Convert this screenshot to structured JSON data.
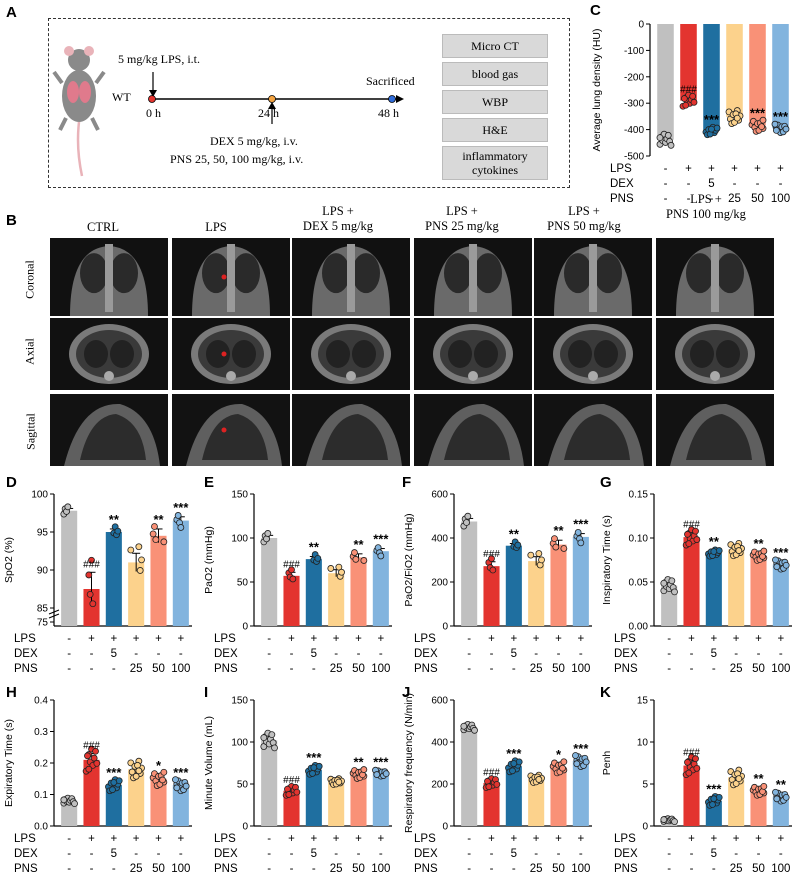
{
  "panel_letters": [
    "A",
    "B",
    "C",
    "D",
    "E",
    "F",
    "G",
    "H",
    "I",
    "J",
    "K"
  ],
  "panel_a": {
    "lps_dose": "5 mg/kg LPS, i.t.",
    "wt": "WT",
    "t0": "0 h",
    "t24": "24 h",
    "t48": "48 h",
    "sacrificed": "Sacrificed",
    "dex": "DEX 5 mg/kg, i.v.",
    "pns": "PNS 25, 50, 100 mg/kg, i.v.",
    "assays": [
      "Micro CT",
      "blood gas",
      "WBP",
      "H&E",
      "inflammatory cytokines"
    ]
  },
  "panel_b": {
    "columns": [
      "CTRL",
      "LPS",
      "LPS +\nDEX 5 mg/kg",
      "LPS +\nPNS 25 mg/kg",
      "LPS +\nPNS 50 mg/kg",
      "LPS +\nPNS 100 mg/kg"
    ],
    "rows": [
      "Coronal",
      "Axial",
      "Sagittal"
    ]
  },
  "treatment_table": {
    "row_labels": [
      "LPS",
      "DEX",
      "PNS"
    ],
    "LPS": [
      "-",
      "+",
      "+",
      "+",
      "+",
      "+"
    ],
    "DEX": [
      "-",
      "-",
      "5",
      "-",
      "-",
      "-"
    ],
    "PNS": [
      "-",
      "-",
      "-",
      "25",
      "50",
      "100"
    ]
  },
  "colors": {
    "CTRL": "#c0c0c0",
    "LPS": "#e3342f",
    "DEX": "#1f6fa0",
    "PNS25": "#fcd28c",
    "PNS50": "#f99177",
    "PNS100": "#82b4de"
  },
  "chart_data": [
    {
      "id": "C",
      "type": "bar",
      "ylabel": "Average lung density (HU)",
      "ylim": [
        -500,
        0
      ],
      "ticks": [
        0,
        -100,
        -200,
        -300,
        -400,
        -500
      ],
      "values": [
        -438,
        -290,
        -405,
        -352,
        -385,
        -395
      ],
      "errors": [
        12,
        12,
        8,
        14,
        12,
        9
      ],
      "stats": [
        "",
        "###",
        "***",
        "",
        "***",
        "***"
      ]
    },
    {
      "id": "D",
      "type": "bar",
      "ylabel": "SpO2 (%)",
      "ylim": [
        75,
        100
      ],
      "ticks": [
        75,
        85,
        90,
        95,
        100
      ],
      "broken_axis": true,
      "values": [
        97.8,
        87.5,
        95.0,
        91.0,
        94.5,
        96.5
      ],
      "errors": [
        0.3,
        2.2,
        0.4,
        1.2,
        0.9,
        0.5
      ],
      "stats": [
        "",
        "###",
        "**",
        "",
        "**",
        "***"
      ]
    },
    {
      "id": "E",
      "type": "bar",
      "ylabel": "PaO2 (mmHg)",
      "ylim": [
        0,
        150
      ],
      "ticks": [
        0,
        50,
        100,
        150
      ],
      "values": [
        100,
        57,
        76,
        60,
        78,
        85
      ],
      "errors": [
        3,
        4,
        3,
        4,
        4,
        3
      ],
      "stats": [
        "",
        "###",
        "**",
        "",
        "**",
        "***"
      ]
    },
    {
      "id": "F",
      "type": "bar",
      "ylabel": "PaO2/FiO2 (mmHg)",
      "ylim": [
        0,
        600
      ],
      "ticks": [
        0,
        200,
        400,
        600
      ],
      "values": [
        475,
        272,
        365,
        295,
        370,
        405
      ],
      "errors": [
        14,
        20,
        10,
        20,
        20,
        15
      ],
      "stats": [
        "",
        "###",
        "**",
        "",
        "**",
        "***"
      ]
    },
    {
      "id": "G",
      "type": "bar",
      "ylabel": "Inspiratory Time (s)",
      "ylim": [
        0,
        0.15
      ],
      "ticks": [
        0.0,
        0.05,
        0.1,
        0.15
      ],
      "values": [
        0.046,
        0.101,
        0.083,
        0.087,
        0.08,
        0.07
      ],
      "errors": [
        0.004,
        0.005,
        0.002,
        0.004,
        0.003,
        0.003
      ],
      "stats": [
        "",
        "###",
        "**",
        "",
        "**",
        "***"
      ]
    },
    {
      "id": "H",
      "type": "bar",
      "ylabel": "Expiratory Time (s)",
      "ylim": [
        0,
        0.4
      ],
      "ticks": [
        0.0,
        0.1,
        0.2,
        0.3,
        0.4
      ],
      "values": [
        0.08,
        0.21,
        0.13,
        0.18,
        0.15,
        0.13
      ],
      "errors": [
        0.005,
        0.02,
        0.01,
        0.015,
        0.012,
        0.01
      ],
      "stats": [
        "",
        "###",
        "***",
        "",
        "*",
        "***"
      ]
    },
    {
      "id": "I",
      "type": "bar",
      "ylabel": "Minute Volume (mL)",
      "ylim": [
        0,
        150
      ],
      "ticks": [
        0,
        50,
        100,
        150
      ],
      "values": [
        102,
        42,
        67,
        53,
        62,
        63
      ],
      "errors": [
        5,
        3,
        3,
        2,
        3,
        2
      ],
      "stats": [
        "",
        "###",
        "***",
        "",
        "**",
        "***"
      ]
    },
    {
      "id": "J",
      "type": "bar",
      "ylabel": "Respiratory frequency (N/min)",
      "ylim": [
        0,
        600
      ],
      "ticks": [
        0,
        200,
        400,
        600
      ],
      "values": [
        470,
        205,
        285,
        225,
        280,
        310
      ],
      "errors": [
        8,
        12,
        15,
        10,
        15,
        15
      ],
      "stats": [
        "",
        "###",
        "***",
        "",
        "*",
        "***"
      ]
    },
    {
      "id": "K",
      "type": "bar",
      "ylabel": "Penh",
      "ylim": [
        0,
        15
      ],
      "ticks": [
        0,
        5,
        10,
        15
      ],
      "values": [
        0.7,
        7.2,
        3.0,
        5.8,
        4.2,
        3.5
      ],
      "errors": [
        0.1,
        0.6,
        0.3,
        0.5,
        0.3,
        0.3
      ],
      "stats": [
        "",
        "###",
        "***",
        "",
        "**",
        "**"
      ]
    }
  ]
}
